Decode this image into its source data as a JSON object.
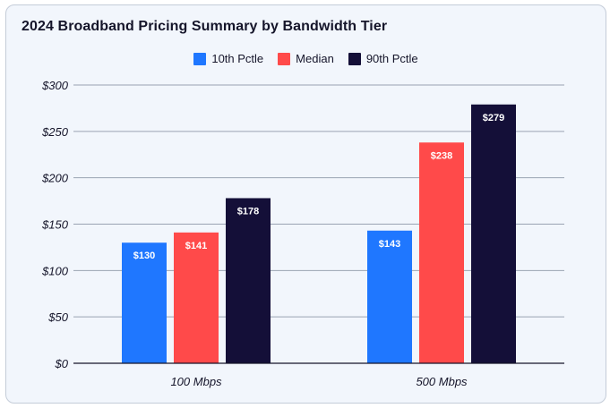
{
  "title": "2024 Broadband Pricing Summary by Bandwidth Tier",
  "colors": {
    "10th Pctle": "#1f77ff",
    "Median": "#ff4a4a",
    "90th Pctle": "#140f38",
    "grid": "#9aa3b2",
    "axis": "#15152a"
  },
  "chart_data": {
    "type": "bar",
    "title": "2024 Broadband Pricing Summary by Bandwidth Tier",
    "categories": [
      "100 Mbps",
      "500 Mbps"
    ],
    "series": [
      {
        "name": "10th Pctle",
        "values": [
          130,
          143
        ],
        "labels": [
          "$130",
          "$143"
        ]
      },
      {
        "name": "Median",
        "values": [
          141,
          238
        ],
        "labels": [
          "$141",
          "$238"
        ]
      },
      {
        "name": "90th Pctle",
        "values": [
          178,
          279
        ],
        "labels": [
          "$178",
          "$279"
        ]
      }
    ],
    "ylim": [
      0,
      300
    ],
    "yticks": [
      0,
      50,
      100,
      150,
      200,
      250,
      300
    ],
    "ytick_labels": [
      "$0",
      "$50",
      "$100",
      "$150",
      "$200",
      "$250",
      "$300"
    ],
    "xlabel": "",
    "ylabel": "",
    "legend": "top-center",
    "grid": true
  }
}
